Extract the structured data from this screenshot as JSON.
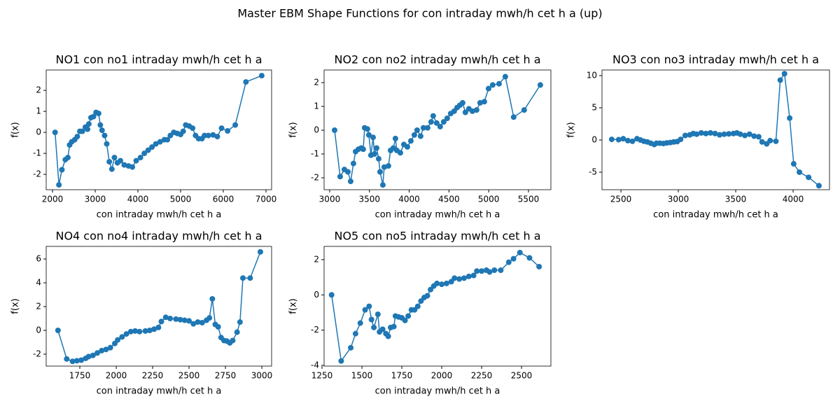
{
  "title": "Master EBM Shape Functions for con  intraday mwh/h cet h a (up)",
  "chart_data": [
    {
      "type": "line",
      "title": "NO1 con no1 intraday mwh/h cet h a",
      "xlabel": "con  intraday mwh/h cet h a",
      "ylabel": "f(x)",
      "color": "#1f77b4",
      "x": [
        2060,
        2150,
        2220,
        2300,
        2360,
        2400,
        2450,
        2520,
        2580,
        2640,
        2700,
        2770,
        2820,
        2850,
        2900,
        2960,
        3020,
        3080,
        3120,
        3160,
        3220,
        3270,
        3330,
        3390,
        3450,
        3520,
        3590,
        3680,
        3780,
        3870,
        3960,
        4060,
        4150,
        4240,
        4330,
        4420,
        4520,
        4620,
        4690,
        4760,
        4840,
        4920,
        5000,
        5060,
        5120,
        5200,
        5280,
        5350,
        5420,
        5500,
        5560,
        5650,
        5760,
        5860,
        5960,
        6100,
        6280,
        6530,
        6900
      ],
      "values": [
        0,
        -2.5,
        -1.78,
        -1.3,
        -1.2,
        -0.6,
        -0.45,
        -0.35,
        -0.2,
        0.05,
        0.05,
        0.25,
        0.15,
        0.4,
        0.7,
        0.75,
        0.95,
        0.9,
        0.35,
        0.1,
        -0.15,
        -0.55,
        -1.4,
        -1.75,
        -1.2,
        -1.45,
        -1.35,
        -1.55,
        -1.6,
        -1.65,
        -1.35,
        -1.2,
        -1.0,
        -0.85,
        -0.7,
        -0.55,
        -0.45,
        -0.35,
        -0.35,
        -0.15,
        0,
        -0.05,
        -0.1,
        0.05,
        0.35,
        0.3,
        0.2,
        -0.15,
        -0.3,
        -0.3,
        -0.15,
        -0.15,
        -0.12,
        -0.2,
        0.2,
        0.07,
        0.35,
        2.4,
        2.7
      ],
      "xlim": [
        1852,
        7131
      ],
      "ylim": [
        -2.73,
        2.97
      ],
      "xticks": [
        2000,
        3000,
        4000,
        5000,
        6000,
        7000
      ],
      "yticks": [
        -2,
        -1,
        0,
        1,
        2
      ]
    },
    {
      "type": "line",
      "title": "NO2 con no2 intraday mwh/h cet h a",
      "xlabel": "con  intraday mwh/h cet h a",
      "ylabel": "f(x)",
      "color": "#1f77b4",
      "x": [
        3062,
        3132,
        3185,
        3229,
        3264,
        3299,
        3326,
        3361,
        3396,
        3422,
        3440,
        3475,
        3493,
        3519,
        3546,
        3563,
        3590,
        3616,
        3634,
        3669,
        3686,
        3739,
        3766,
        3801,
        3827,
        3845,
        3889,
        3933,
        3977,
        4021,
        4065,
        4100,
        4144,
        4179,
        4232,
        4276,
        4302,
        4346,
        4390,
        4434,
        4478,
        4522,
        4566,
        4602,
        4637,
        4672,
        4707,
        4751,
        4795,
        4848,
        4892,
        4945,
        4998,
        5050,
        5130,
        5209,
        5314,
        5446,
        5649
      ],
      "values": [
        0,
        -1.95,
        -1.65,
        -1.75,
        -2.15,
        -1.4,
        -0.9,
        -0.8,
        -0.75,
        -0.8,
        0.1,
        0.05,
        -0.2,
        -1.05,
        -0.3,
        -1.0,
        -0.75,
        -1.2,
        -1.75,
        -2.3,
        -1.55,
        -1.5,
        -0.85,
        -0.75,
        -0.35,
        -0.85,
        -0.95,
        -0.6,
        -0.7,
        -0.45,
        -0.2,
        0,
        -0.25,
        0.1,
        0.1,
        0.35,
        0.6,
        0.3,
        0.15,
        0.35,
        0.5,
        0.7,
        0.8,
        0.95,
        1.05,
        1.15,
        0.75,
        0.9,
        0.8,
        0.85,
        1.15,
        1.2,
        1.75,
        1.9,
        1.95,
        2.25,
        0.55,
        0.85,
        1.9
      ],
      "xlim": [
        2930,
        5782
      ],
      "ylim": [
        -2.5,
        2.53
      ],
      "xticks": [
        3000,
        3500,
        4000,
        4500,
        5000,
        5500
      ],
      "yticks": [
        -2,
        -1,
        0,
        1,
        2
      ]
    },
    {
      "type": "line",
      "title": "NO3 con no3 intraday mwh/h cet h a",
      "xlabel": "con  intraday mwh/h cet h a",
      "ylabel": "f(x)",
      "color": "#1f77b4",
      "x": [
        2420,
        2480,
        2520,
        2560,
        2600,
        2640,
        2670,
        2700,
        2730,
        2760,
        2790,
        2810,
        2840,
        2870,
        2900,
        2930,
        2960,
        2990,
        3020,
        3060,
        3100,
        3130,
        3160,
        3200,
        3240,
        3280,
        3320,
        3360,
        3400,
        3440,
        3480,
        3510,
        3540,
        3580,
        3620,
        3660,
        3700,
        3730,
        3770,
        3800,
        3850,
        3888,
        3925,
        3970,
        4005,
        4055,
        4135,
        4225
      ],
      "values": [
        0.1,
        0.05,
        0.2,
        -0.1,
        -0.2,
        0.2,
        0,
        -0.2,
        -0.3,
        -0.5,
        -0.7,
        -0.5,
        -0.5,
        -0.55,
        -0.45,
        -0.4,
        -0.3,
        -0.25,
        0.1,
        0.7,
        0.8,
        1.0,
        0.9,
        1.1,
        1.0,
        1.1,
        1.0,
        0.8,
        0.9,
        0.95,
        1.0,
        1.1,
        0.9,
        0.7,
        0.9,
        0.6,
        0.5,
        -0.3,
        -0.6,
        -0.1,
        -0.2,
        9.3,
        10.3,
        3.4,
        -3.7,
        -5,
        -5.8,
        -7.1
      ],
      "xlim": [
        2335,
        4317
      ],
      "ylim": [
        -7.72,
        10.87
      ],
      "xticks": [
        2500,
        3000,
        3500,
        4000
      ],
      "yticks": [
        -5,
        0,
        5,
        10
      ]
    },
    {
      "type": "line",
      "title": "NO4 con no4 intraday mwh/h cet h a",
      "xlabel": "con  intraday mwh/h cet h a",
      "ylabel": "f(x)",
      "color": "#1f77b4",
      "x": [
        1600,
        1660,
        1700,
        1730,
        1760,
        1790,
        1810,
        1840,
        1870,
        1900,
        1930,
        1960,
        1990,
        2010,
        2040,
        2070,
        2100,
        2130,
        2160,
        2200,
        2230,
        2260,
        2290,
        2310,
        2340,
        2370,
        2410,
        2440,
        2470,
        2500,
        2530,
        2560,
        2590,
        2620,
        2640,
        2660,
        2680,
        2700,
        2720,
        2740,
        2760,
        2780,
        2800,
        2830,
        2850,
        2870,
        2920,
        2990
      ],
      "values": [
        0,
        -2.4,
        -2.6,
        -2.55,
        -2.5,
        -2.35,
        -2.2,
        -2.1,
        -1.9,
        -1.7,
        -1.6,
        -1.45,
        -1.1,
        -0.8,
        -0.55,
        -0.3,
        -0.1,
        -0.05,
        -0.1,
        -0.05,
        0,
        0.1,
        0.25,
        0.75,
        1.1,
        1.0,
        0.95,
        0.9,
        0.85,
        0.8,
        0.55,
        0.7,
        0.65,
        0.85,
        1.05,
        2.65,
        0.5,
        0.3,
        -0.6,
        -0.85,
        -0.9,
        -1.05,
        -0.85,
        -0.15,
        0.7,
        4.4,
        4.4,
        6.6
      ],
      "xlim": [
        1519,
        3067
      ],
      "ylim": [
        -3,
        7.06
      ],
      "xticks": [
        1750,
        2000,
        2250,
        2500,
        2750,
        3000
      ],
      "yticks": [
        -2,
        0,
        2,
        4,
        6
      ]
    },
    {
      "type": "line",
      "title": "NO5 con no5 intraday mwh/h cet h a",
      "xlabel": "con  intraday mwh/h cet h a",
      "ylabel": "f(x)",
      "color": "#1f77b4",
      "x": [
        1310,
        1370,
        1430,
        1460,
        1490,
        1520,
        1545,
        1560,
        1575,
        1600,
        1610,
        1630,
        1650,
        1665,
        1680,
        1700,
        1710,
        1730,
        1750,
        1770,
        1790,
        1810,
        1830,
        1850,
        1870,
        1890,
        1910,
        1930,
        1950,
        1970,
        2000,
        2030,
        2060,
        2080,
        2110,
        2140,
        2170,
        2200,
        2220,
        2250,
        2280,
        2300,
        2330,
        2370,
        2420,
        2450,
        2490,
        2550,
        2610
      ],
      "values": [
        0,
        -3.75,
        -3.0,
        -2.2,
        -1.6,
        -0.85,
        -0.65,
        -1.4,
        -1.85,
        -1.1,
        -2.1,
        -1.95,
        -2.2,
        -2.35,
        -1.85,
        -1.8,
        -1.2,
        -1.25,
        -1.3,
        -1.45,
        -1.2,
        -0.85,
        -0.85,
        -0.65,
        -0.35,
        -0.15,
        -0.05,
        0.3,
        0.5,
        0.65,
        0.6,
        0.65,
        0.75,
        0.95,
        0.9,
        0.95,
        1.05,
        1.1,
        1.35,
        1.35,
        1.4,
        1.3,
        1.4,
        1.4,
        1.85,
        2.05,
        2.4,
        2.1,
        1.6
      ],
      "xlim": [
        1263,
        2684
      ],
      "ylim": [
        -4.04,
        2.75
      ],
      "xticks": [
        1250,
        1500,
        1750,
        2000,
        2250,
        2500
      ],
      "yticks": [
        -4,
        -2,
        0,
        2
      ]
    }
  ]
}
